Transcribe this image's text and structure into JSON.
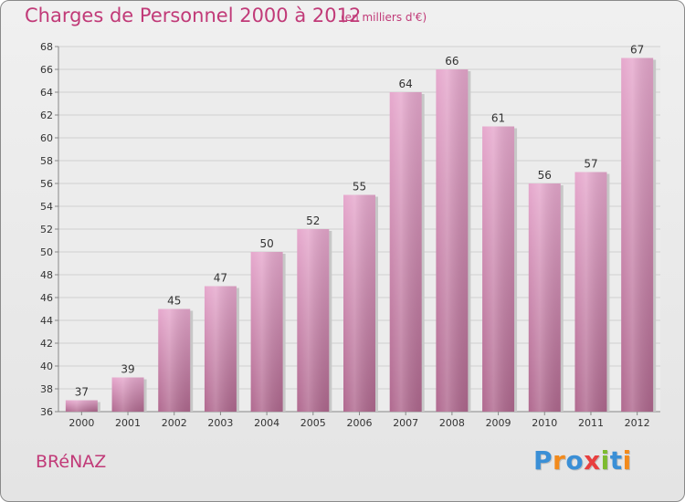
{
  "title": "Charges de Personnel 2000 à 2012",
  "subtitle": "(en milliers d'€)",
  "commune": "BRéNAZ",
  "logo": {
    "letters": [
      {
        "char": "P",
        "color": "#3a8fd6"
      },
      {
        "char": "r",
        "color": "#f28a1c"
      },
      {
        "char": "o",
        "color": "#3a8fd6"
      },
      {
        "char": "x",
        "color": "#e83f3f"
      },
      {
        "char": "i",
        "color": "#7dbb2f"
      },
      {
        "char": "t",
        "color": "#3a8fd6"
      },
      {
        "char": "i",
        "color": "#f28a1c"
      }
    ]
  },
  "chart_data": {
    "type": "bar",
    "title": "Charges de Personnel 2000 à 2012",
    "subtitle": "(en milliers d'€)",
    "categories": [
      "2000",
      "2001",
      "2002",
      "2003",
      "2004",
      "2005",
      "2006",
      "2007",
      "2008",
      "2009",
      "2010",
      "2011",
      "2012"
    ],
    "values": [
      37,
      39,
      45,
      47,
      50,
      52,
      55,
      64,
      66,
      61,
      56,
      57,
      67
    ],
    "ylim": [
      36,
      68
    ],
    "yticks": [
      36,
      38,
      40,
      42,
      44,
      46,
      48,
      50,
      52,
      54,
      56,
      58,
      60,
      62,
      64,
      66,
      68
    ],
    "grid": true,
    "bar_color": "#d98cb8"
  }
}
